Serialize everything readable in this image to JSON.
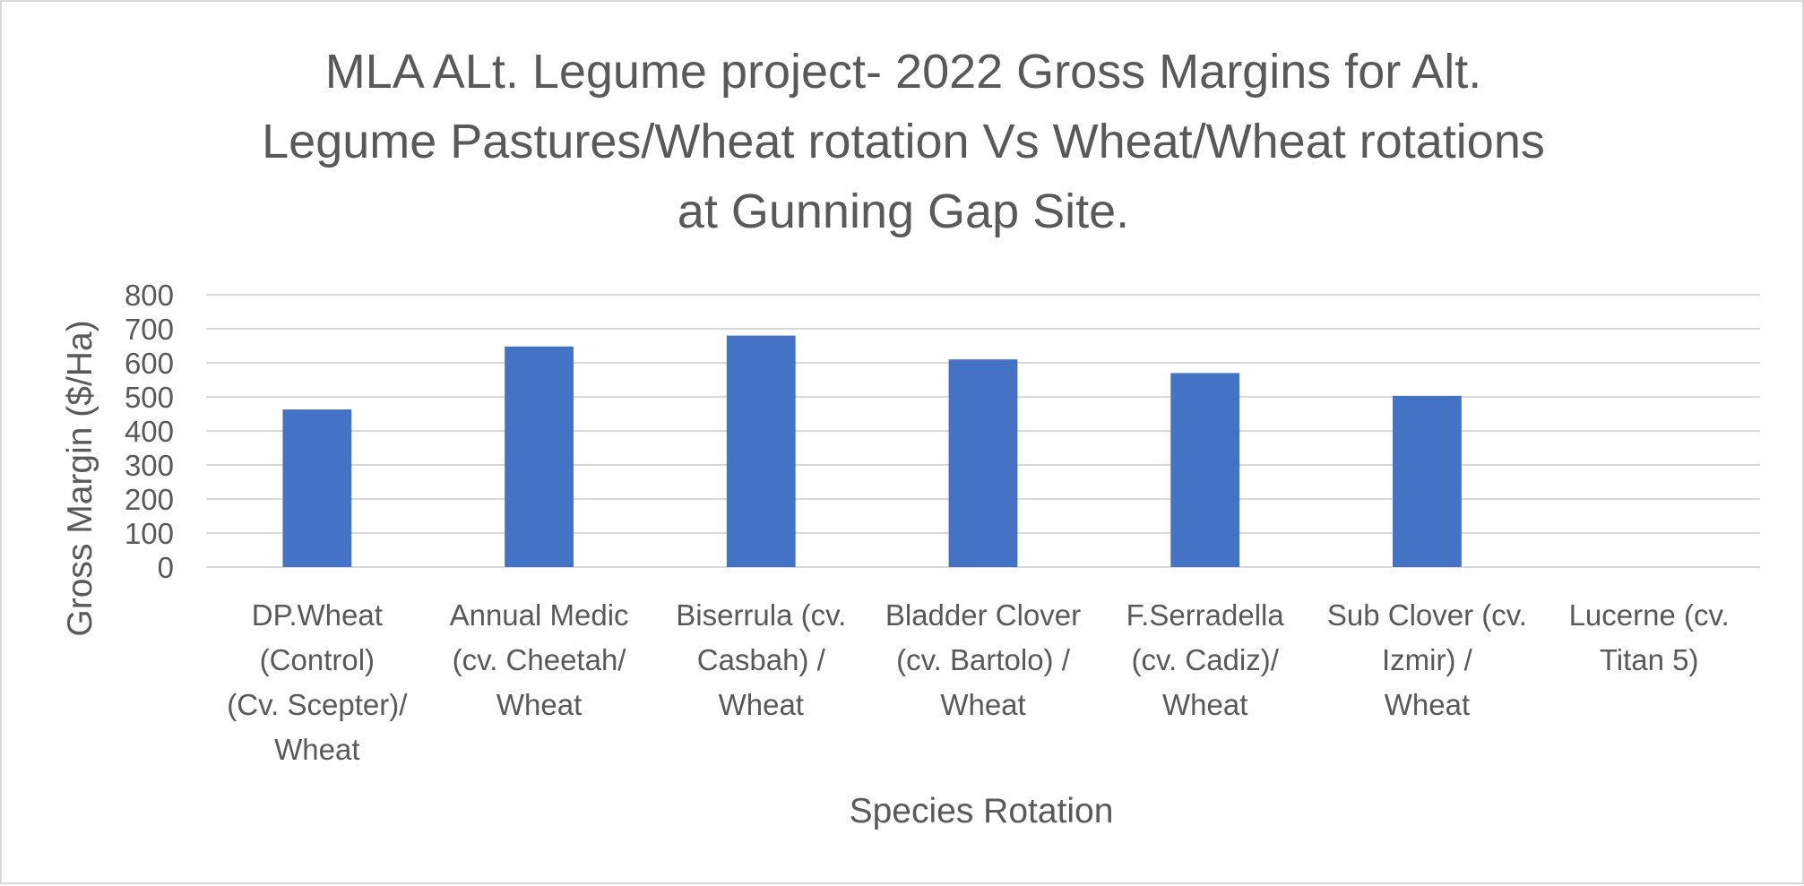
{
  "chart_data": {
    "type": "bar",
    "title_lines": [
      "MLA ALt. Legume project- 2022 Gross Margins for Alt.",
      "Legume Pastures/Wheat rotation Vs Wheat/Wheat rotations",
      "at Gunning Gap Site."
    ],
    "xlabel": "Species Rotation",
    "ylabel": "Gross Margin ($/Ha)",
    "ylim": [
      0,
      800
    ],
    "yticks": [
      "0",
      "100",
      "200",
      "300",
      "400",
      "500",
      "600",
      "700",
      "800"
    ],
    "grid": true,
    "legend": "none",
    "bar_color": "#4472c4",
    "categories": [
      [
        "DP.Wheat",
        "(Control)",
        "(Cv. Scepter)/",
        "Wheat"
      ],
      [
        "Annual Medic",
        "(cv. Cheetah/",
        "Wheat"
      ],
      [
        "Biserrula (cv.",
        "Casbah) /",
        "Wheat"
      ],
      [
        "Bladder Clover",
        "(cv. Bartolo) /",
        "Wheat"
      ],
      [
        "F.Serradella",
        "(cv. Cadiz)/",
        "Wheat"
      ],
      [
        "Sub Clover (cv.",
        "Izmir) /",
        "Wheat"
      ],
      [
        "Lucerne (cv.",
        "Titan 5)"
      ]
    ],
    "values": [
      463,
      648,
      680,
      610,
      570,
      503,
      0
    ]
  }
}
